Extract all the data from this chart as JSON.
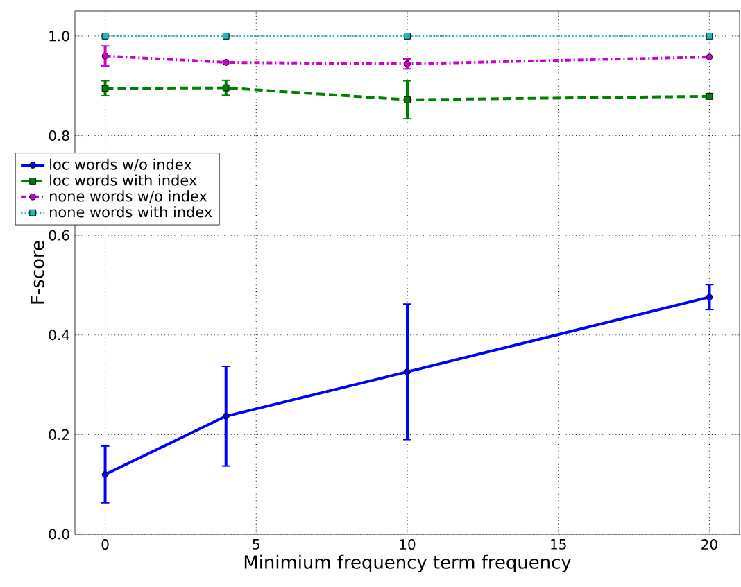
{
  "chart_data": {
    "type": "line",
    "xlabel": "Minimium frequency term frequency",
    "ylabel": "F-score",
    "x": [
      0,
      4,
      10,
      20
    ],
    "series": [
      {
        "name": "loc words w/o index",
        "color": "#0000ff",
        "values": [
          0.12,
          0.237,
          0.326,
          0.476
        ],
        "errors": [
          0.057,
          0.1,
          0.136,
          0.025
        ],
        "marker": "circle",
        "line_style": "solid"
      },
      {
        "name": "loc words with index",
        "color": "#008000",
        "values": [
          0.895,
          0.896,
          0.872,
          0.879
        ],
        "errors": [
          0.015,
          0.015,
          0.038,
          0.005
        ],
        "marker": "square",
        "line_style": "dashed"
      },
      {
        "name": "none words w/o index",
        "color": "#cc00cc",
        "values": [
          0.96,
          0.947,
          0.944,
          0.958
        ],
        "errors": [
          0.02,
          null,
          0.01,
          null
        ],
        "marker": "circle",
        "line_style": "dashdot"
      },
      {
        "name": "none words with index",
        "color": "#22bbbb",
        "values": [
          1.0,
          1.0,
          1.0,
          1.0
        ],
        "marker": "square",
        "line_style": "dotted"
      }
    ],
    "xlim": [
      -1,
      21
    ],
    "ylim": [
      0,
      1.05
    ],
    "xticks": [
      0,
      5,
      10,
      15,
      20
    ],
    "yticks": [
      {
        "value": 0,
        "label": "0.0"
      },
      0.2,
      0.4,
      0.6,
      0.8,
      {
        "value": 1.0,
        "label": "1.0"
      }
    ],
    "grid": true,
    "legend": "center left"
  }
}
